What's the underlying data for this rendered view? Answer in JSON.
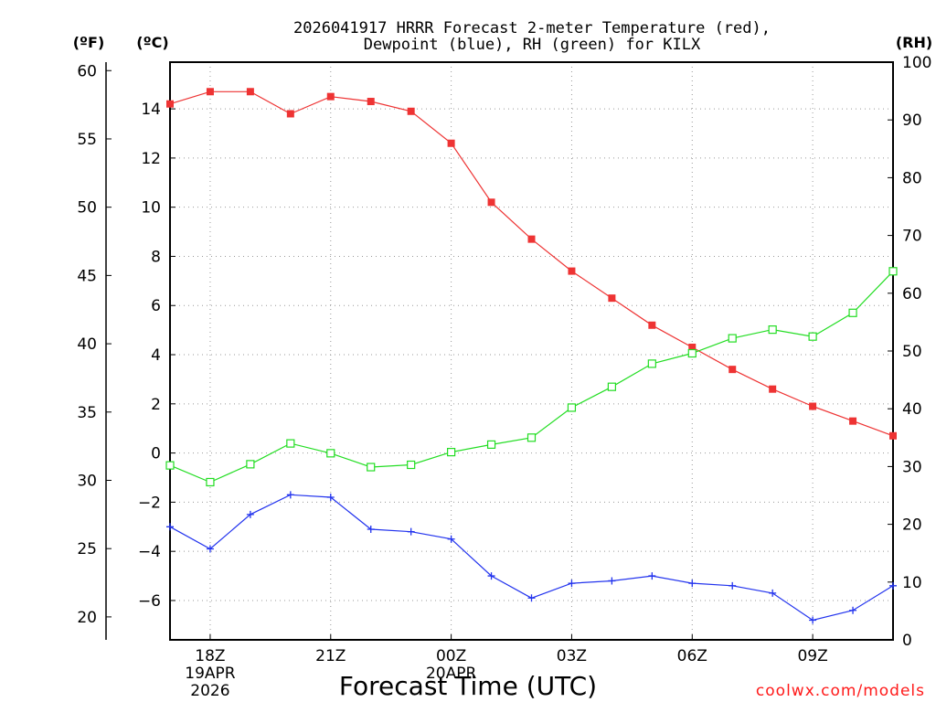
{
  "chart_data": {
    "type": "line",
    "title_line1": "2026041917 HRRR Forecast 2-meter Temperature (red),",
    "title_line2": "Dewpoint (blue), RH (green) for KILX",
    "xlabel": "Forecast Time (UTC)",
    "credit": "coolwx.com/models",
    "units": {
      "fahrenheit": "(ºF)",
      "celsius": "(ºC)",
      "rh": "(RH)"
    },
    "hours": [
      17,
      18,
      19,
      20,
      21,
      22,
      23,
      24,
      25,
      26,
      27,
      28,
      29,
      30,
      31,
      32,
      33,
      34,
      35
    ],
    "x_ticks": [
      {
        "hour": 18,
        "label": "18Z",
        "date1": "19APR",
        "date2": "2026"
      },
      {
        "hour": 21,
        "label": "21Z"
      },
      {
        "hour": 24,
        "label": "00Z",
        "date1": "20APR"
      },
      {
        "hour": 27,
        "label": "03Z"
      },
      {
        "hour": 30,
        "label": "06Z"
      },
      {
        "hour": 33,
        "label": "09Z"
      }
    ],
    "celsius_range": [
      -7.6,
      15.9
    ],
    "celsius_ticks": [
      14,
      12,
      10,
      8,
      6,
      4,
      2,
      0,
      -2,
      -4,
      -6
    ],
    "fahrenheit_ticks": [
      60,
      55,
      50,
      45,
      40,
      35,
      30,
      25,
      20
    ],
    "rh_range": [
      0,
      100
    ],
    "rh_ticks": [
      100,
      90,
      80,
      70,
      60,
      50,
      40,
      30,
      20,
      10,
      0
    ],
    "series": [
      {
        "name": "Temperature",
        "axis": "C",
        "color": "#ee3333",
        "marker": "square-filled",
        "values": [
          14.2,
          14.7,
          14.7,
          13.8,
          14.5,
          14.3,
          13.9,
          12.6,
          10.2,
          8.7,
          7.4,
          6.3,
          5.2,
          4.3,
          3.4,
          2.6,
          1.9,
          1.3,
          0.7
        ]
      },
      {
        "name": "Dewpoint",
        "axis": "C",
        "color": "#2233ee",
        "marker": "plus",
        "values": [
          -3.0,
          -3.9,
          -2.5,
          -1.7,
          -1.8,
          -3.1,
          -3.2,
          -3.5,
          -5.0,
          -5.9,
          -5.3,
          -5.2,
          -5.0,
          -5.3,
          -5.4,
          -5.7,
          -6.8,
          -6.4,
          -5.4
        ]
      },
      {
        "name": "RH",
        "axis": "RH",
        "color": "#22dd22",
        "marker": "square-open",
        "values": [
          30.2,
          27.3,
          30.4,
          34.0,
          32.3,
          29.9,
          30.3,
          32.5,
          33.8,
          35.0,
          40.2,
          43.8,
          47.8,
          49.6,
          52.2,
          53.7,
          52.5,
          56.6,
          63.8
        ]
      }
    ]
  }
}
